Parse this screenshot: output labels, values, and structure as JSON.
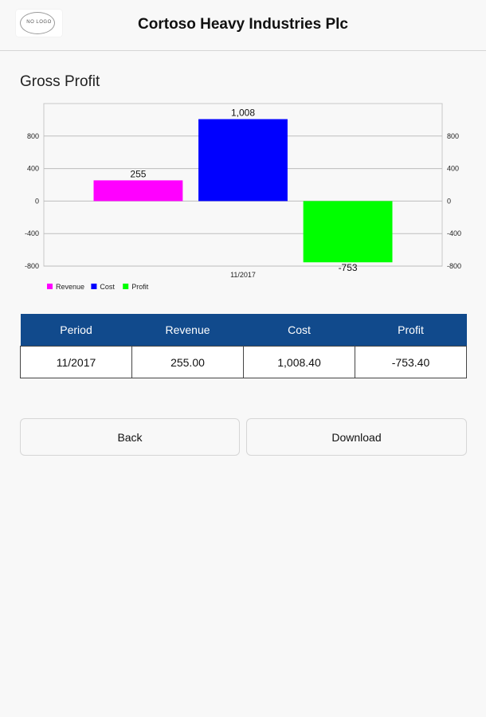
{
  "header": {
    "logo_text": "NO LOGO",
    "title": "Cortoso Heavy Industries Plc"
  },
  "section": {
    "title": "Gross Profit"
  },
  "chart_data": {
    "type": "bar",
    "categories": [
      "11/2017"
    ],
    "series": [
      {
        "name": "Revenue",
        "values": [
          255
        ],
        "color": "#ff00ff",
        "label": "255"
      },
      {
        "name": "Cost",
        "values": [
          1008.4
        ],
        "color": "#0000ff",
        "label": "1,008"
      },
      {
        "name": "Profit",
        "values": [
          -753.4
        ],
        "color": "#00ff00",
        "label": "-753"
      }
    ],
    "y_ticks": [
      800,
      400,
      0,
      -400,
      -800
    ],
    "y_tick_labels": [
      "800",
      "400",
      "0",
      "-400",
      "-800"
    ],
    "ylim": [
      -800,
      1200
    ],
    "secondary_axis": true,
    "grid": true,
    "legend_position": "bottom-left"
  },
  "table": {
    "headers": [
      "Period",
      "Revenue",
      "Cost",
      "Profit"
    ],
    "rows": [
      [
        "11/2017",
        "255.00",
        "1,008.40",
        "-753.40"
      ]
    ]
  },
  "buttons": {
    "back": "Back",
    "download": "Download"
  }
}
